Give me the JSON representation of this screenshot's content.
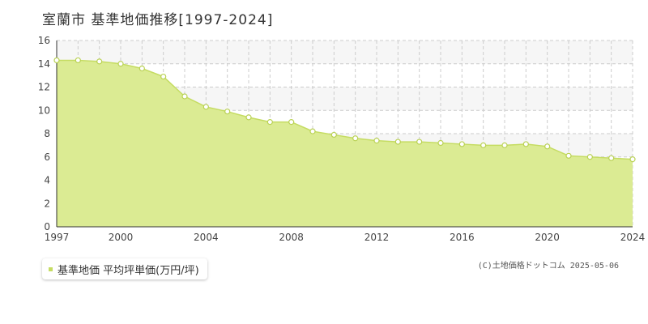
{
  "title": "室蘭市 基準地価推移[1997-2024]",
  "legend": {
    "label": "基準地価 平均坪単価(万円/坪)"
  },
  "copyright": "(C)土地価格ドットコム 2025-05-06",
  "colors": {
    "area": "#dbeb93",
    "line": "#c5dc62",
    "point_stroke": "#b9d153",
    "grid": "#cccccc",
    "band": "#f6f6f6"
  },
  "chart_data": {
    "type": "area",
    "x": [
      1997,
      1998,
      1999,
      2000,
      2001,
      2002,
      2003,
      2004,
      2005,
      2006,
      2007,
      2008,
      2009,
      2010,
      2011,
      2012,
      2013,
      2014,
      2015,
      2016,
      2017,
      2018,
      2019,
      2020,
      2021,
      2022,
      2023,
      2024
    ],
    "series": [
      {
        "values": [
          14.3,
          14.3,
          14.2,
          14.0,
          13.6,
          12.9,
          11.2,
          10.3,
          9.9,
          9.4,
          9.0,
          9.0,
          8.2,
          7.9,
          7.6,
          7.4,
          7.3,
          7.3,
          7.2,
          7.1,
          7.0,
          7.0,
          7.1,
          6.9,
          6.1,
          6.0,
          5.9,
          5.8
        ]
      }
    ],
    "xticks": [
      1997,
      2000,
      2004,
      2008,
      2012,
      2016,
      2020,
      2024
    ],
    "yticks": [
      0,
      2,
      4,
      6,
      8,
      10,
      12,
      14,
      16
    ],
    "xlim": [
      1997,
      2024
    ],
    "ylim": [
      0,
      16
    ],
    "xlabel": "",
    "ylabel": "",
    "grid": true
  }
}
